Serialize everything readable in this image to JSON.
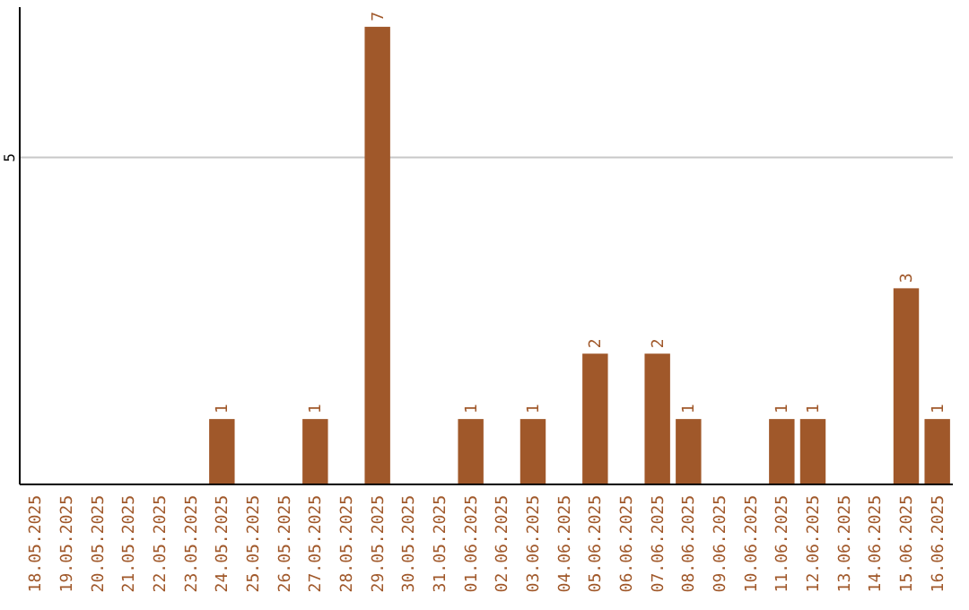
{
  "chart_data": {
    "type": "bar",
    "categories": [
      "18.05.2025",
      "19.05.2025",
      "20.05.2025",
      "21.05.2025",
      "22.05.2025",
      "23.05.2025",
      "24.05.2025",
      "25.05.2025",
      "26.05.2025",
      "27.05.2025",
      "28.05.2025",
      "29.05.2025",
      "30.05.2025",
      "31.05.2025",
      "01.06.2025",
      "02.06.2025",
      "03.06.2025",
      "04.06.2025",
      "05.06.2025",
      "06.06.2025",
      "07.06.2025",
      "08.06.2025",
      "09.06.2025",
      "10.06.2025",
      "11.06.2025",
      "12.06.2025",
      "13.06.2025",
      "14.06.2025",
      "15.06.2025",
      "16.06.2025"
    ],
    "values": [
      0,
      0,
      0,
      0,
      0,
      0,
      1,
      0,
      0,
      1,
      0,
      7,
      0,
      0,
      1,
      0,
      1,
      0,
      2,
      0,
      2,
      1,
      0,
      0,
      1,
      1,
      0,
      0,
      3,
      1
    ],
    "value_labels": [
      null,
      null,
      null,
      null,
      null,
      null,
      "1",
      null,
      null,
      "1",
      null,
      "7",
      null,
      null,
      "1",
      null,
      "1",
      null,
      "2",
      null,
      "2",
      "1",
      null,
      null,
      "1",
      "1",
      null,
      null,
      "3",
      "1"
    ],
    "color": "#a0582a",
    "ylim": [
      0,
      7.3
    ],
    "yticks": [
      5
    ],
    "grid": "y"
  }
}
